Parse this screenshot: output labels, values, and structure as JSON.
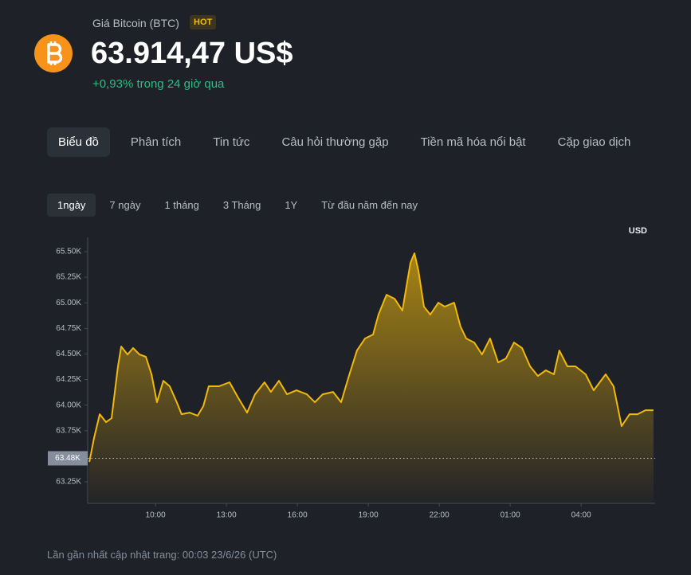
{
  "header": {
    "title": "Giá Bitcoin (BTC)",
    "badge": "HOT",
    "price": "63.914,47 US$",
    "change": "+0,93% trong 24 giờ qua"
  },
  "tabs": {
    "items": [
      "Biểu đồ",
      "Phân tích",
      "Tin tức",
      "Câu hỏi thường gặp",
      "Tiền mã hóa nổi bật",
      "Cặp giao dịch"
    ],
    "active": 0
  },
  "ranges": {
    "items": [
      "1ngày",
      "7 ngày",
      "1 tháng",
      "3 Tháng",
      "1Y",
      "Từ đầu năm đến nay"
    ],
    "active": 0
  },
  "chart_data": {
    "type": "area",
    "unit_label": "USD",
    "color": "#f0b90b",
    "x": [
      7.2,
      7.4,
      7.64,
      7.91,
      8.14,
      8.41,
      8.55,
      8.82,
      9.05,
      9.32,
      9.59,
      9.83,
      10.06,
      10.33,
      10.6,
      10.9,
      11.1,
      11.44,
      11.78,
      12.02,
      12.25,
      12.69,
      13.13,
      13.47,
      13.87,
      14.21,
      14.61,
      14.88,
      15.22,
      15.56,
      15.96,
      16.4,
      16.74,
      17.07,
      17.51,
      17.85,
      18.15,
      18.52,
      18.86,
      19.2,
      19.43,
      19.77,
      20.11,
      20.44,
      20.61,
      20.78,
      20.95,
      21.12,
      21.35,
      21.62,
      21.96,
      22.23,
      22.63,
      22.9,
      23.14,
      23.48,
      23.81,
      24.15,
      24.49,
      24.82,
      25.16,
      25.5,
      25.84,
      26.17,
      26.51,
      26.85,
      27.08,
      27.42,
      27.76,
      28.19,
      28.53,
      29.04,
      29.37,
      29.71,
      30.05,
      30.39,
      30.72,
      31.06
    ],
    "values": [
      63444,
      63678,
      63911,
      63833,
      63872,
      64379,
      64573,
      64495,
      64558,
      64495,
      64472,
      64301,
      64028,
      64238,
      64184,
      64028,
      63911,
      63927,
      63896,
      63990,
      64184,
      64184,
      64223,
      64082,
      63927,
      64106,
      64223,
      64129,
      64238,
      64106,
      64145,
      64106,
      64028,
      64106,
      64129,
      64028,
      64262,
      64534,
      64651,
      64690,
      64885,
      65079,
      65040,
      64924,
      65157,
      65391,
      65484,
      65313,
      64963,
      64885,
      65001,
      64963,
      65001,
      64768,
      64651,
      64612,
      64495,
      64651,
      64417,
      64456,
      64612,
      64558,
      64379,
      64285,
      64340,
      64301,
      64534,
      64379,
      64379,
      64301,
      64145,
      64301,
      64184,
      63794,
      63911,
      63911,
      63950,
      63950
    ],
    "xlim": [
      7.13,
      31.13
    ],
    "ylim": [
      63040,
      65640
    ],
    "xticks": [
      {
        "value": 10,
        "label": "10:00"
      },
      {
        "value": 13,
        "label": "13:00"
      },
      {
        "value": 16,
        "label": "16:00"
      },
      {
        "value": 19,
        "label": "19:00"
      },
      {
        "value": 22,
        "label": "22:00"
      },
      {
        "value": 25,
        "label": "01:00"
      },
      {
        "value": 28,
        "label": "04:00"
      }
    ],
    "yticks": [
      {
        "value": 65500,
        "label": "65.50K"
      },
      {
        "value": 65250,
        "label": "65.25K"
      },
      {
        "value": 65000,
        "label": "65.00K"
      },
      {
        "value": 64750,
        "label": "64.75K"
      },
      {
        "value": 64500,
        "label": "64.50K"
      },
      {
        "value": 64250,
        "label": "64.25K"
      },
      {
        "value": 64000,
        "label": "64.00K"
      },
      {
        "value": 63750,
        "label": "63.75K"
      },
      {
        "value": 63250,
        "label": "63.25K"
      }
    ],
    "reference_line": {
      "value": 63480,
      "label": "63.48K"
    }
  },
  "footer": "Lần gần nhất cập nhật trang: 00:03 23/6/26 (UTC)"
}
